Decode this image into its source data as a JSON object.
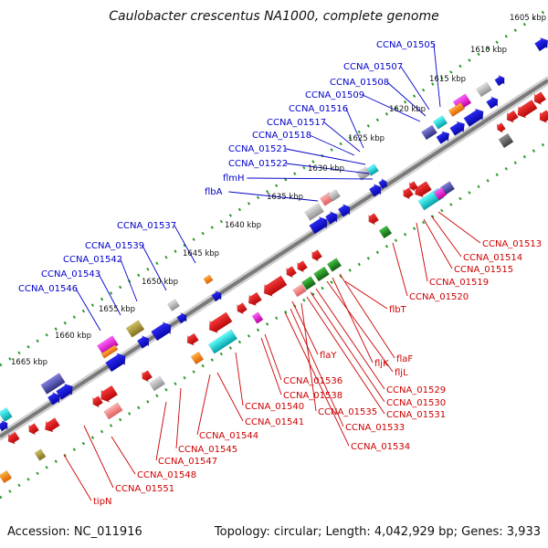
{
  "title": "Caulobacter crescentus NA1000, complete genome",
  "footer": {
    "accession": "Accession: NC_011916",
    "summary": "Topology: circular; Length: 4,042,929 bp; Genes: 3,933"
  },
  "colors": {
    "forward_label": "#0000cc",
    "reverse_label": "#cc0000",
    "axis": "#8a8a8a",
    "dots": "#3a9a3a"
  },
  "kbp_ticks": [
    "1605 kbp",
    "1610 kbp",
    "1615 kbp",
    "1620 kbp",
    "1625 kbp",
    "1630 kbp",
    "1635 kbp",
    "1640 kbp",
    "1645 kbp",
    "1650 kbp",
    "1655 kbp",
    "1660 kbp",
    "1665 kbp"
  ],
  "forward_labels": [
    "CCNA_01505",
    "CCNA_01507",
    "CCNA_01508",
    "CCNA_01509",
    "CCNA_01516",
    "CCNA_01517",
    "CCNA_01518",
    "CCNA_01521",
    "CCNA_01522",
    "flmH",
    "flbA",
    "CCNA_01537",
    "CCNA_01539",
    "CCNA_01542",
    "CCNA_01543",
    "CCNA_01546"
  ],
  "reverse_labels": [
    "CCNA_01513",
    "CCNA_01514",
    "CCNA_01515",
    "CCNA_01519",
    "CCNA_01520",
    "flbT",
    "flaF",
    "flaY",
    "fljK",
    "fljL",
    "CCNA_01529",
    "CCNA_01530",
    "CCNA_01531",
    "CCNA_01536",
    "CCNA_01538",
    "CCNA_01540",
    "CCNA_01535",
    "CCNA_01533",
    "CCNA_01534",
    "CCNA_01541",
    "CCNA_01544",
    "CCNA_01545",
    "CCNA_01547",
    "CCNA_01548",
    "CCNA_01551",
    "tipN"
  ]
}
